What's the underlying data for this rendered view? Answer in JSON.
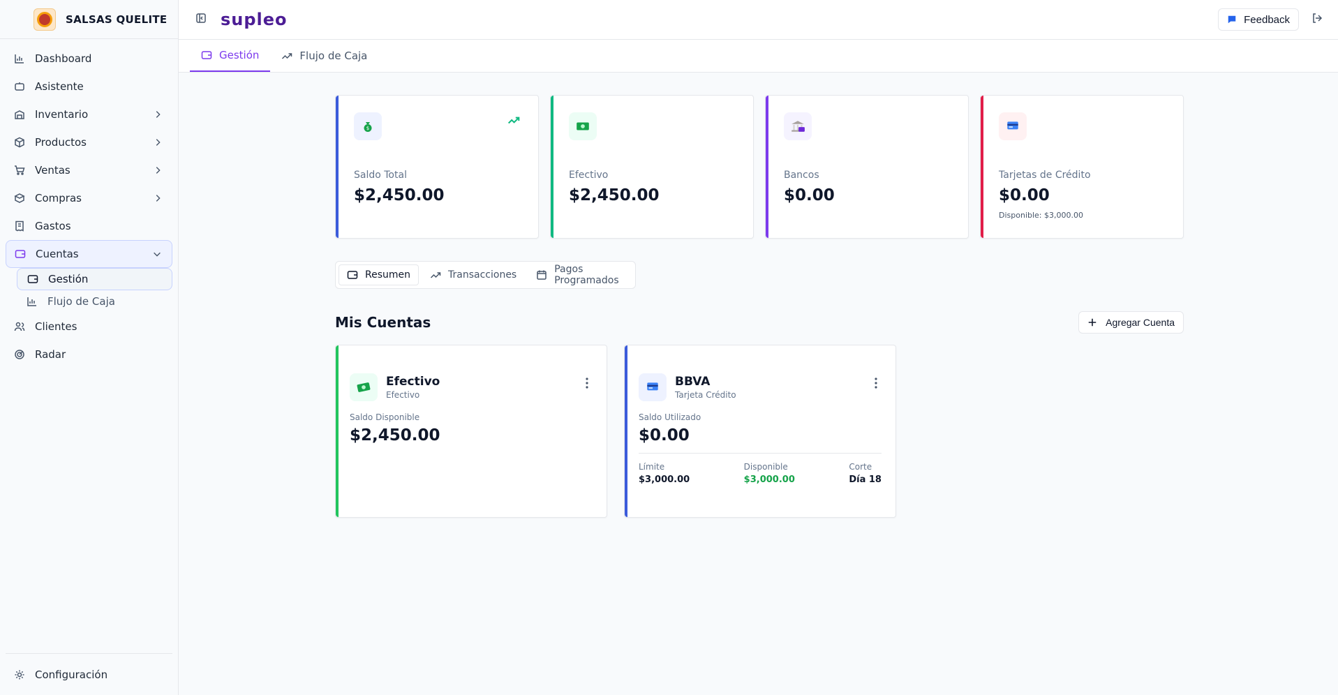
{
  "brand": {
    "name": "SALSAS QUELITE"
  },
  "topbar": {
    "wordmark": "supleo",
    "feedback_label": "Feedback"
  },
  "sidebar": {
    "items": [
      {
        "label": "Dashboard"
      },
      {
        "label": "Asistente"
      },
      {
        "label": "Inventario"
      },
      {
        "label": "Productos"
      },
      {
        "label": "Ventas"
      },
      {
        "label": "Compras"
      },
      {
        "label": "Gastos"
      },
      {
        "label": "Cuentas",
        "active": true,
        "children": [
          {
            "label": "Gestión",
            "active": true
          },
          {
            "label": "Flujo de Caja"
          }
        ]
      },
      {
        "label": "Clientes"
      },
      {
        "label": "Radar"
      }
    ],
    "footer_item": {
      "label": "Configuración"
    }
  },
  "pagetabs": [
    {
      "label": "Gestión",
      "active": true
    },
    {
      "label": "Flujo de Caja"
    }
  ],
  "kpis": [
    {
      "label": "Saldo Total",
      "value": "$2,450.00",
      "accent": "#3b5bdb",
      "icon": "money-bag-icon",
      "trend": "trending-up-icon"
    },
    {
      "label": "Efectivo",
      "value": "$2,450.00",
      "accent": "#10b981",
      "icon": "banknote-icon"
    },
    {
      "label": "Bancos",
      "value": "$0.00",
      "accent": "#7c3aed",
      "icon": "bank-icon"
    },
    {
      "label": "Tarjetas de Crédito",
      "value": "$0.00",
      "sub": "Disponible: $3,000.00",
      "accent": "#e11d48",
      "icon": "credit-card-icon"
    }
  ],
  "segtabs": [
    {
      "label": "Resumen",
      "active": true
    },
    {
      "label": "Transacciones"
    },
    {
      "label": "Pagos Programados"
    }
  ],
  "section": {
    "title": "Mis Cuentas",
    "add_label": "Agregar Cuenta"
  },
  "accounts": [
    {
      "name": "Efectivo",
      "type": "Efectivo",
      "accent": "#22c55e",
      "caption": "Saldo Disponible",
      "amount": "$2,450.00"
    },
    {
      "name": "BBVA",
      "type": "Tarjeta Crédito",
      "accent": "#3b5bdb",
      "caption": "Saldo Utilizado",
      "amount": "$0.00",
      "stats": [
        {
          "label": "Límite",
          "value": "$3,000.00"
        },
        {
          "label": "Disponible",
          "value": "$3,000.00"
        },
        {
          "label": "Corte",
          "value": "Día 18"
        }
      ]
    }
  ]
}
